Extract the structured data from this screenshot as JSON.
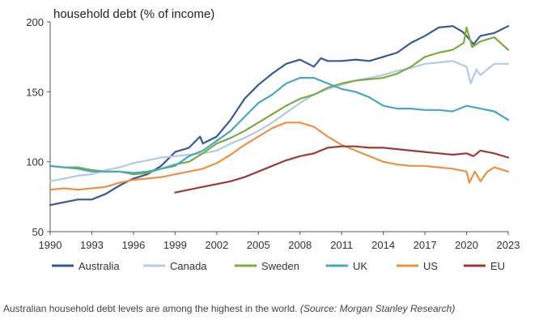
{
  "chart_data": {
    "type": "line",
    "title": "household debt (% of income)",
    "xlabel": "",
    "ylabel": "",
    "xlim": [
      1990,
      2023
    ],
    "ylim": [
      50,
      200
    ],
    "x_ticks": [
      "1990",
      "1993",
      "1996",
      "1999",
      "2002",
      "2005",
      "2008",
      "2011",
      "2014",
      "2017",
      "2020",
      "2023"
    ],
    "y_ticks": [
      "50",
      "100",
      "150",
      "200"
    ],
    "grid": false,
    "legend_position": "bottom",
    "series": [
      {
        "name": "Australia",
        "color": "#3a5a8c",
        "points": [
          [
            1990,
            69
          ],
          [
            1991,
            71
          ],
          [
            1992,
            73
          ],
          [
            1993,
            73
          ],
          [
            1994,
            77
          ],
          [
            1995,
            83
          ],
          [
            1996,
            88
          ],
          [
            1997,
            91
          ],
          [
            1998,
            97
          ],
          [
            1999,
            107
          ],
          [
            2000,
            110
          ],
          [
            2000.8,
            118
          ],
          [
            2001,
            113
          ],
          [
            2002,
            118
          ],
          [
            2003,
            130
          ],
          [
            2004,
            145
          ],
          [
            2005,
            155
          ],
          [
            2006,
            163
          ],
          [
            2007,
            170
          ],
          [
            2008,
            173
          ],
          [
            2009,
            168
          ],
          [
            2009.5,
            174
          ],
          [
            2010,
            172
          ],
          [
            2011,
            172
          ],
          [
            2012,
            173
          ],
          [
            2013,
            172
          ],
          [
            2014,
            175
          ],
          [
            2015,
            178
          ],
          [
            2016,
            185
          ],
          [
            2017,
            190
          ],
          [
            2018,
            196
          ],
          [
            2019,
            197
          ],
          [
            2019.7,
            193
          ],
          [
            2020,
            190
          ],
          [
            2020.5,
            184
          ],
          [
            2021,
            190
          ],
          [
            2022,
            192
          ],
          [
            2023,
            197
          ]
        ]
      },
      {
        "name": "Canada",
        "color": "#b4c9e2",
        "points": [
          [
            1990,
            86
          ],
          [
            1991,
            88
          ],
          [
            1992,
            90
          ],
          [
            1993,
            91
          ],
          [
            1994,
            94
          ],
          [
            1995,
            96
          ],
          [
            1996,
            99
          ],
          [
            1997,
            101
          ],
          [
            1998,
            103
          ],
          [
            1999,
            104
          ],
          [
            2000,
            105
          ],
          [
            2001,
            106
          ],
          [
            2002,
            108
          ],
          [
            2003,
            113
          ],
          [
            2004,
            117
          ],
          [
            2005,
            122
          ],
          [
            2006,
            128
          ],
          [
            2007,
            135
          ],
          [
            2008,
            142
          ],
          [
            2009,
            148
          ],
          [
            2010,
            152
          ],
          [
            2011,
            155
          ],
          [
            2012,
            158
          ],
          [
            2013,
            160
          ],
          [
            2014,
            162
          ],
          [
            2015,
            165
          ],
          [
            2016,
            167
          ],
          [
            2017,
            170
          ],
          [
            2018,
            171
          ],
          [
            2019,
            172
          ],
          [
            2020,
            168
          ],
          [
            2020.3,
            156
          ],
          [
            2020.7,
            166
          ],
          [
            2021,
            162
          ],
          [
            2022,
            170
          ],
          [
            2023,
            170
          ]
        ]
      },
      {
        "name": "Sweden",
        "color": "#7fa84a",
        "points": [
          [
            1990,
            97
          ],
          [
            1991,
            96
          ],
          [
            1992,
            96
          ],
          [
            1993,
            94
          ],
          [
            1994,
            93
          ],
          [
            1995,
            93
          ],
          [
            1996,
            91
          ],
          [
            1997,
            92
          ],
          [
            1998,
            95
          ],
          [
            1999,
            98
          ],
          [
            2000,
            100
          ],
          [
            2001,
            106
          ],
          [
            2002,
            113
          ],
          [
            2003,
            117
          ],
          [
            2004,
            122
          ],
          [
            2005,
            128
          ],
          [
            2006,
            134
          ],
          [
            2007,
            140
          ],
          [
            2008,
            145
          ],
          [
            2009,
            148
          ],
          [
            2010,
            153
          ],
          [
            2011,
            156
          ],
          [
            2012,
            158
          ],
          [
            2013,
            159
          ],
          [
            2014,
            160
          ],
          [
            2015,
            163
          ],
          [
            2016,
            168
          ],
          [
            2017,
            175
          ],
          [
            2018,
            178
          ],
          [
            2019,
            180
          ],
          [
            2019.8,
            185
          ],
          [
            2020,
            196
          ],
          [
            2020.4,
            182
          ],
          [
            2021,
            186
          ],
          [
            2022,
            189
          ],
          [
            2023,
            180
          ]
        ]
      },
      {
        "name": "UK",
        "color": "#4ba6bd",
        "points": [
          [
            1990,
            97
          ],
          [
            1991,
            96
          ],
          [
            1992,
            95
          ],
          [
            1993,
            93
          ],
          [
            1994,
            93
          ],
          [
            1995,
            93
          ],
          [
            1996,
            92
          ],
          [
            1997,
            93
          ],
          [
            1998,
            95
          ],
          [
            1999,
            97
          ],
          [
            2000,
            104
          ],
          [
            2001,
            108
          ],
          [
            2002,
            115
          ],
          [
            2003,
            122
          ],
          [
            2004,
            132
          ],
          [
            2005,
            142
          ],
          [
            2006,
            148
          ],
          [
            2007,
            156
          ],
          [
            2008,
            160
          ],
          [
            2009,
            160
          ],
          [
            2010,
            156
          ],
          [
            2011,
            152
          ],
          [
            2012,
            150
          ],
          [
            2013,
            146
          ],
          [
            2014,
            140
          ],
          [
            2015,
            138
          ],
          [
            2016,
            138
          ],
          [
            2017,
            137
          ],
          [
            2018,
            137
          ],
          [
            2019,
            136
          ],
          [
            2020,
            140
          ],
          [
            2021,
            138
          ],
          [
            2022,
            136
          ],
          [
            2023,
            130
          ]
        ]
      },
      {
        "name": "US",
        "color": "#e8914a",
        "points": [
          [
            1990,
            80
          ],
          [
            1991,
            81
          ],
          [
            1992,
            80
          ],
          [
            1993,
            81
          ],
          [
            1994,
            82
          ],
          [
            1995,
            85
          ],
          [
            1996,
            87
          ],
          [
            1997,
            88
          ],
          [
            1998,
            89
          ],
          [
            1999,
            91
          ],
          [
            2000,
            93
          ],
          [
            2001,
            95
          ],
          [
            2002,
            99
          ],
          [
            2003,
            105
          ],
          [
            2004,
            112
          ],
          [
            2005,
            118
          ],
          [
            2006,
            124
          ],
          [
            2007,
            128
          ],
          [
            2008,
            128
          ],
          [
            2009,
            125
          ],
          [
            2010,
            118
          ],
          [
            2011,
            112
          ],
          [
            2012,
            108
          ],
          [
            2013,
            104
          ],
          [
            2014,
            100
          ],
          [
            2015,
            98
          ],
          [
            2016,
            97
          ],
          [
            2017,
            97
          ],
          [
            2018,
            96
          ],
          [
            2019,
            95
          ],
          [
            2020,
            93
          ],
          [
            2020.2,
            85
          ],
          [
            2020.6,
            93
          ],
          [
            2021,
            86
          ],
          [
            2021.5,
            93
          ],
          [
            2022,
            96
          ],
          [
            2023,
            93
          ]
        ]
      },
      {
        "name": "EU",
        "color": "#9c3a3a",
        "points": [
          [
            1999,
            78
          ],
          [
            2000,
            80
          ],
          [
            2001,
            82
          ],
          [
            2002,
            84
          ],
          [
            2003,
            86
          ],
          [
            2004,
            89
          ],
          [
            2005,
            93
          ],
          [
            2006,
            97
          ],
          [
            2007,
            101
          ],
          [
            2008,
            104
          ],
          [
            2009,
            106
          ],
          [
            2010,
            110
          ],
          [
            2011,
            111
          ],
          [
            2012,
            111
          ],
          [
            2013,
            110
          ],
          [
            2014,
            110
          ],
          [
            2015,
            109
          ],
          [
            2016,
            108
          ],
          [
            2017,
            107
          ],
          [
            2018,
            106
          ],
          [
            2019,
            105
          ],
          [
            2020,
            106
          ],
          [
            2020.5,
            104
          ],
          [
            2021,
            108
          ],
          [
            2022,
            106
          ],
          [
            2023,
            103
          ]
        ]
      }
    ]
  },
  "caption": {
    "text": "Australian household debt levels are among the highest in the world.",
    "source": "(Source: Morgan Stanley Research)"
  }
}
